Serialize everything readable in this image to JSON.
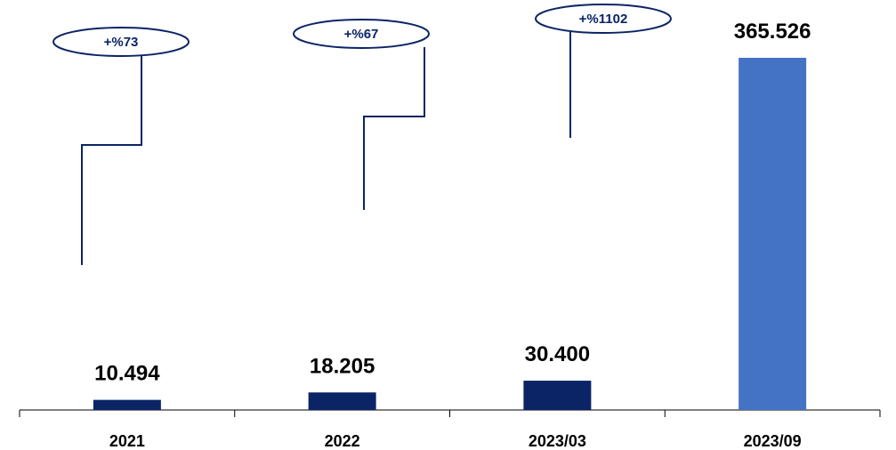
{
  "chart_data": {
    "type": "bar",
    "categories": [
      "2021",
      "2022",
      "2023/03",
      "2023/09"
    ],
    "values": [
      10494,
      18205,
      30400,
      365526
    ],
    "value_labels": [
      "10.494",
      "18.205",
      "30.400",
      "365.526"
    ],
    "bar_colors": [
      "#0b2466",
      "#0b2466",
      "#0b2466",
      "#4472c4"
    ],
    "growth_labels": [
      "+%73",
      "+%67",
      "+%1102"
    ],
    "annotation_color": "#0b2466",
    "title": "",
    "xlabel": "",
    "ylabel": "",
    "ylim": [
      0,
      365526
    ],
    "grid": false,
    "legend": "none"
  }
}
